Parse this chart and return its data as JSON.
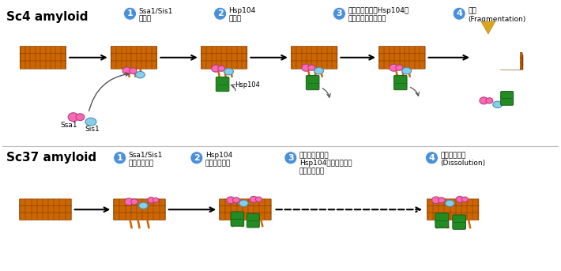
{
  "background_color": "#ffffff",
  "title_sc4": "Sc4 amyloid",
  "title_sc37": "Sc37 amyloid",
  "step1_sc4": "Ssa1/Sis1\nの結合",
  "step2_sc4": "Hsp104\nの結合",
  "step3_sc4": "同じサイトへのHsp104の\n繰り返しの結合解離",
  "step4_sc4": "分断\n(Fragmentation)",
  "step1_sc37": "Ssa1/Sis1\n結合量の増加",
  "step2_sc37": "Hsp104\n結合量の増加",
  "step3_sc37": "同じサイトへの\nHsp104の繰り返し結\n合解離の減少",
  "step4_sc37": "一様な脱凝集\n(Dissolution)",
  "color_amyloid": "#CC6600",
  "color_ssa1": "#FF69B4",
  "color_sis1": "#87CEEB",
  "color_hsp104": "#228B22",
  "color_arrow": "#222222",
  "color_circle": "#4a90d9",
  "color_circle_text": "#ffffff",
  "color_fragmentation_arrow": "#DAA520",
  "label_ssa1": "Ssa1",
  "label_sis1": "Sis1",
  "label_hsp104": "Hsp104"
}
